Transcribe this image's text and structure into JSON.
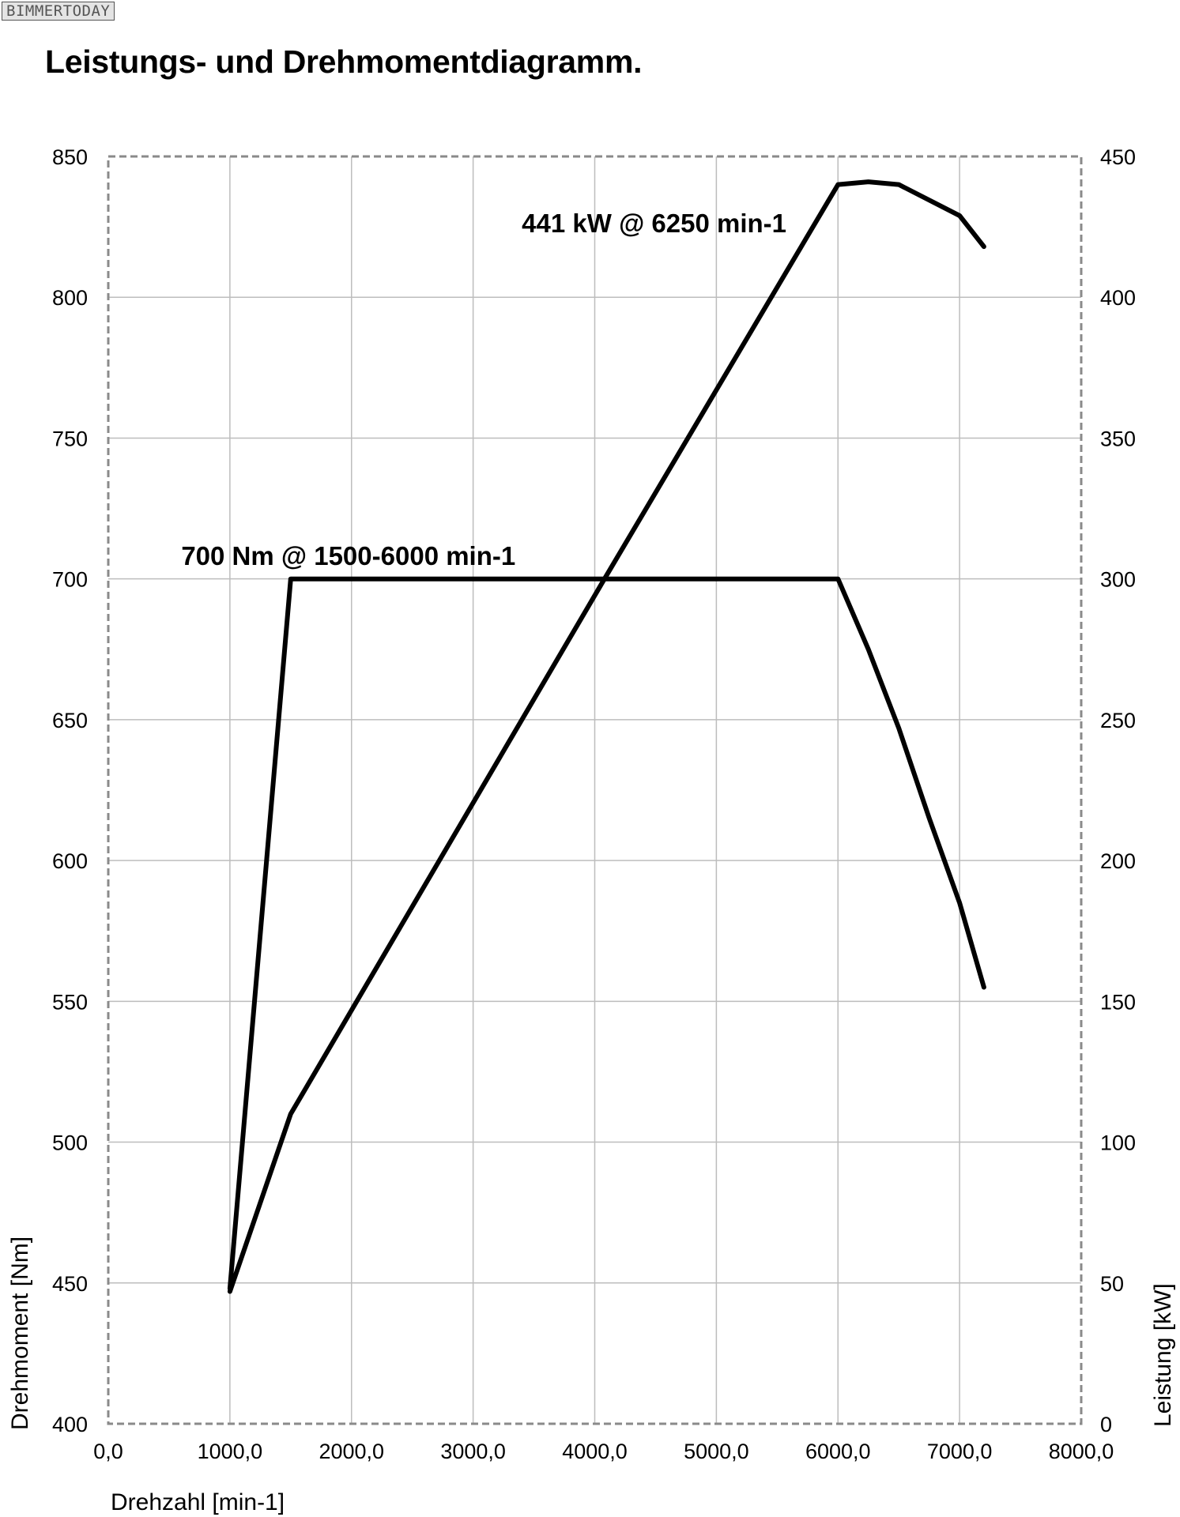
{
  "watermark": "BIMMERTODAY",
  "title": "Leistungs- und Drehmomentdiagramm.",
  "chart_data": {
    "type": "line",
    "grid": true,
    "xlabel": "Drehzahl [min-1]",
    "ylabel_left": "Drehmoment [Nm]",
    "ylabel_right": "Leistung [kW]",
    "xlim": [
      0,
      8000
    ],
    "ylim_left": [
      400,
      850
    ],
    "ylim_right": [
      0,
      450
    ],
    "x_ticks": [
      0,
      1000,
      2000,
      3000,
      4000,
      5000,
      6000,
      7000,
      8000
    ],
    "x_tick_labels": [
      "0,0",
      "1000,0",
      "2000,0",
      "3000,0",
      "4000,0",
      "5000,0",
      "6000,0",
      "7000,0",
      "8000,0"
    ],
    "y_left_ticks": [
      400,
      450,
      500,
      550,
      600,
      650,
      700,
      750,
      800,
      850
    ],
    "y_left_tick_labels": [
      "400",
      "450",
      "500",
      "550",
      "600",
      "650",
      "700",
      "750",
      "800",
      "850"
    ],
    "y_right_ticks": [
      0,
      50,
      100,
      150,
      200,
      250,
      300,
      350,
      400,
      450
    ],
    "y_right_tick_labels": [
      "0",
      "50",
      "100",
      "150",
      "200",
      "250",
      "300",
      "350",
      "400",
      "450"
    ],
    "series": [
      {
        "axis": "left",
        "color": "#000000",
        "points": [
          [
            1000,
            448
          ],
          [
            1500,
            700
          ],
          [
            6000,
            700
          ],
          [
            6250,
            675
          ],
          [
            6500,
            647
          ],
          [
            6750,
            615
          ],
          [
            7000,
            585
          ],
          [
            7200,
            555
          ]
        ]
      },
      {
        "axis": "right",
        "color": "#000000",
        "points": [
          [
            1000,
            47
          ],
          [
            1500,
            110
          ],
          [
            4080,
            300
          ],
          [
            6000,
            440
          ],
          [
            6250,
            441
          ],
          [
            6500,
            440
          ],
          [
            7000,
            429
          ],
          [
            7200,
            418
          ]
        ]
      }
    ],
    "annotations": [
      {
        "text": "700 Nm @ 1500-6000 min-1",
        "axis": "left",
        "x": 600,
        "y": 705
      },
      {
        "text": "441 kW @ 6250 min-1",
        "axis": "right",
        "x": 3400,
        "y": 423
      }
    ]
  }
}
